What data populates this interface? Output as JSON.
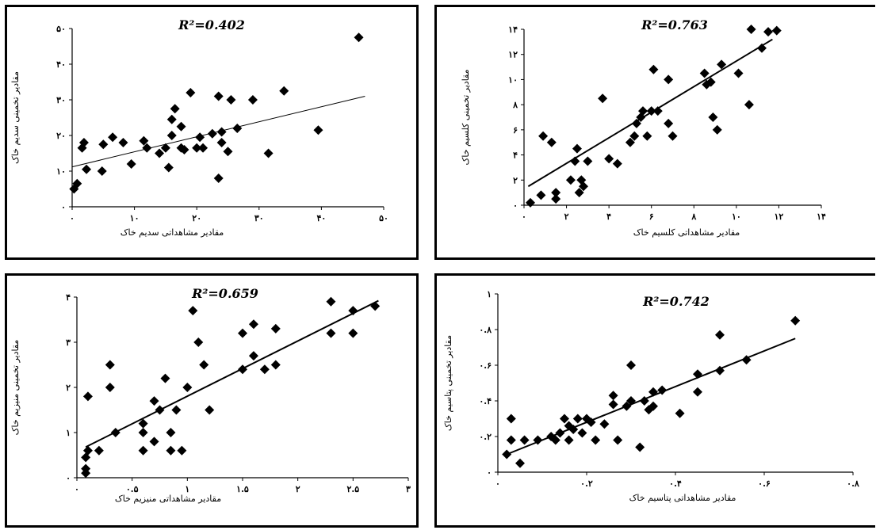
{
  "colors": {
    "axis": "#000000",
    "marker": "#000000",
    "frame": "#000000",
    "background": "#ffffff"
  },
  "chart_data": [
    {
      "type": "scatter",
      "title": "R²=0.402",
      "xlabel": "مقادیر مشاهداتی سدیم خاک",
      "ylabel": "مقادیر تخمینی سدیم خاک",
      "xlim": [
        0,
        50
      ],
      "ylim": [
        0,
        50
      ],
      "xticks": [
        0,
        10,
        20,
        30,
        40,
        50
      ],
      "xtick_labels": [
        "۰",
        "۱۰",
        "۲۰",
        "۳۰",
        "۴۰",
        "۵۰"
      ],
      "yticks": [
        0,
        10,
        20,
        30,
        40,
        50
      ],
      "ytick_labels": [
        "۰",
        "۱۰",
        "۲۰",
        "۳۰",
        "۴۰",
        "۵۰"
      ],
      "trendline": {
        "x": [
          0,
          47
        ],
        "y": [
          11.2,
          31
        ]
      },
      "points": [
        [
          0.3,
          5
        ],
        [
          0.8,
          6.5
        ],
        [
          1.6,
          16.5
        ],
        [
          1.9,
          18
        ],
        [
          2.3,
          10.5
        ],
        [
          4.8,
          10
        ],
        [
          5,
          17.5
        ],
        [
          6.5,
          19.5
        ],
        [
          8.2,
          18
        ],
        [
          9.5,
          12
        ],
        [
          11.5,
          18.5
        ],
        [
          12,
          16.5
        ],
        [
          14,
          15
        ],
        [
          15,
          16.5
        ],
        [
          15.5,
          11
        ],
        [
          16,
          20
        ],
        [
          16,
          24.5
        ],
        [
          16.5,
          27.5
        ],
        [
          17.5,
          22.5
        ],
        [
          17.5,
          16.5
        ],
        [
          18,
          16
        ],
        [
          19,
          32
        ],
        [
          20,
          16.5
        ],
        [
          20.5,
          19.5
        ],
        [
          21,
          16.5
        ],
        [
          22.5,
          20.5
        ],
        [
          23.5,
          8
        ],
        [
          23.5,
          31
        ],
        [
          24,
          18
        ],
        [
          24,
          21
        ],
        [
          25,
          15.5
        ],
        [
          25.5,
          30
        ],
        [
          26.5,
          22
        ],
        [
          29,
          30
        ],
        [
          31.5,
          15
        ],
        [
          34,
          32.5
        ],
        [
          39.5,
          21.5
        ],
        [
          46,
          47.5
        ]
      ]
    },
    {
      "type": "scatter",
      "title": "R²=0.763",
      "xlabel": "مقادیر مشاهداتی کلسیم خاک",
      "ylabel": "مقادیر تخمینی کلسیم خاک",
      "xlim": [
        0,
        14
      ],
      "ylim": [
        0,
        14
      ],
      "xticks": [
        0,
        2,
        4,
        6,
        8,
        10,
        12,
        14
      ],
      "xtick_labels": [
        "۰",
        "۲",
        "۴",
        "۶",
        "۸",
        "۱۰",
        "۱۲",
        "۱۴"
      ],
      "yticks": [
        0,
        2,
        4,
        6,
        8,
        10,
        12,
        14
      ],
      "ytick_labels": [
        "۰",
        "۲",
        "۴",
        "۶",
        "۸",
        "۱۰",
        "۱۲",
        "۱۴"
      ],
      "trendline": {
        "x": [
          0.2,
          11.7
        ],
        "y": [
          1.5,
          13.2
        ]
      },
      "points": [
        [
          0.3,
          0.2
        ],
        [
          0.8,
          0.8
        ],
        [
          0.9,
          5.5
        ],
        [
          1.3,
          5
        ],
        [
          1.5,
          1
        ],
        [
          1.5,
          0.5
        ],
        [
          2.2,
          2
        ],
        [
          2.4,
          3.5
        ],
        [
          2.5,
          4.5
        ],
        [
          2.6,
          1
        ],
        [
          2.7,
          2
        ],
        [
          2.8,
          1.5
        ],
        [
          3,
          3.5
        ],
        [
          3.7,
          8.5
        ],
        [
          4,
          3.7
        ],
        [
          4.4,
          3.3
        ],
        [
          5,
          5
        ],
        [
          5.2,
          5.5
        ],
        [
          5.3,
          6.5
        ],
        [
          5.5,
          7
        ],
        [
          5.6,
          7.5
        ],
        [
          5.8,
          5.5
        ],
        [
          6,
          7.5
        ],
        [
          6.1,
          10.8
        ],
        [
          6.3,
          7.5
        ],
        [
          6.8,
          6.5
        ],
        [
          6.8,
          10
        ],
        [
          7,
          5.5
        ],
        [
          8.5,
          10.5
        ],
        [
          8.6,
          9.6
        ],
        [
          8.8,
          9.8
        ],
        [
          8.9,
          7
        ],
        [
          9.1,
          6
        ],
        [
          9.3,
          11.2
        ],
        [
          10.1,
          10.5
        ],
        [
          10.6,
          8
        ],
        [
          10.7,
          14
        ],
        [
          11.2,
          12.5
        ],
        [
          11.5,
          13.8
        ],
        [
          11.9,
          13.9
        ]
      ]
    },
    {
      "type": "scatter",
      "title": "R²=0.659",
      "xlabel": "مقادیر مشاهداتی منیزیم خاک",
      "ylabel": "مقادیر تخمینی منیزیم خاک",
      "xlim": [
        0,
        3
      ],
      "ylim": [
        0,
        4
      ],
      "xticks": [
        0,
        0.5,
        1,
        1.5,
        2,
        2.5,
        3
      ],
      "xtick_labels": [
        "۰",
        "۰.۵",
        "۱",
        "۱.۵",
        "۲",
        "۲.۵",
        "۳"
      ],
      "yticks": [
        0,
        1,
        2,
        3,
        4
      ],
      "ytick_labels": [
        "۰",
        "۱",
        "۲",
        "۳",
        "۴"
      ],
      "trendline": {
        "x": [
          0.08,
          2.73
        ],
        "y": [
          0.68,
          3.92
        ]
      },
      "points": [
        [
          0.08,
          0.1
        ],
        [
          0.08,
          0.2
        ],
        [
          0.08,
          0.45
        ],
        [
          0.1,
          1.8
        ],
        [
          0.1,
          0.6
        ],
        [
          0.2,
          0.6
        ],
        [
          0.3,
          2.5
        ],
        [
          0.3,
          2
        ],
        [
          0.35,
          1
        ],
        [
          0.6,
          1.2
        ],
        [
          0.6,
          0.6
        ],
        [
          0.6,
          1
        ],
        [
          0.7,
          1.7
        ],
        [
          0.7,
          0.8
        ],
        [
          0.75,
          1.5
        ],
        [
          0.8,
          2.2
        ],
        [
          0.85,
          0.6
        ],
        [
          0.85,
          1
        ],
        [
          0.9,
          1.5
        ],
        [
          0.95,
          0.6
        ],
        [
          1,
          2
        ],
        [
          1.05,
          3.7
        ],
        [
          1.1,
          3
        ],
        [
          1.15,
          2.5
        ],
        [
          1.2,
          1.5
        ],
        [
          1.5,
          3.2
        ],
        [
          1.5,
          2.4
        ],
        [
          1.6,
          3.4
        ],
        [
          1.6,
          2.7
        ],
        [
          1.7,
          2.4
        ],
        [
          1.8,
          3.3
        ],
        [
          1.8,
          2.5
        ],
        [
          2.3,
          3.9
        ],
        [
          2.3,
          3.2
        ],
        [
          2.5,
          3.7
        ],
        [
          2.5,
          3.2
        ],
        [
          2.7,
          3.8
        ]
      ]
    },
    {
      "type": "scatter",
      "title": "R²=0.742",
      "xlabel": "مقادیر مشاهداتی پتاسیم خاک",
      "ylabel": "مقادیر تخمینی پتاسیم خاک",
      "xlim": [
        0,
        0.8
      ],
      "ylim": [
        0,
        1
      ],
      "xticks": [
        0,
        0.2,
        0.4,
        0.6,
        0.8
      ],
      "xtick_labels": [
        "۰",
        "۰.۲",
        "۰.۴",
        "۰.۶",
        "۰.۸"
      ],
      "yticks": [
        0,
        0.2,
        0.4,
        0.6,
        0.8,
        1
      ],
      "ytick_labels": [
        "۰",
        "۰.۲",
        "۰.۴",
        "۰.۶",
        "۰.۸",
        "۱"
      ],
      "trendline": {
        "x": [
          0.02,
          0.67
        ],
        "y": [
          0.1,
          0.75
        ]
      },
      "points": [
        [
          0.02,
          0.1
        ],
        [
          0.03,
          0.3
        ],
        [
          0.03,
          0.18
        ],
        [
          0.05,
          0.05
        ],
        [
          0.06,
          0.18
        ],
        [
          0.09,
          0.18
        ],
        [
          0.12,
          0.2
        ],
        [
          0.13,
          0.18
        ],
        [
          0.14,
          0.22
        ],
        [
          0.15,
          0.3
        ],
        [
          0.16,
          0.26
        ],
        [
          0.16,
          0.18
        ],
        [
          0.17,
          0.24
        ],
        [
          0.18,
          0.3
        ],
        [
          0.19,
          0.22
        ],
        [
          0.2,
          0.3
        ],
        [
          0.21,
          0.28
        ],
        [
          0.22,
          0.18
        ],
        [
          0.24,
          0.27
        ],
        [
          0.26,
          0.43
        ],
        [
          0.26,
          0.38
        ],
        [
          0.27,
          0.18
        ],
        [
          0.29,
          0.37
        ],
        [
          0.3,
          0.6
        ],
        [
          0.3,
          0.4
        ],
        [
          0.32,
          0.14
        ],
        [
          0.33,
          0.4
        ],
        [
          0.34,
          0.35
        ],
        [
          0.35,
          0.45
        ],
        [
          0.35,
          0.37
        ],
        [
          0.37,
          0.46
        ],
        [
          0.41,
          0.33
        ],
        [
          0.45,
          0.55
        ],
        [
          0.45,
          0.45
        ],
        [
          0.5,
          0.77
        ],
        [
          0.5,
          0.57
        ],
        [
          0.56,
          0.63
        ],
        [
          0.67,
          0.85
        ]
      ]
    }
  ]
}
